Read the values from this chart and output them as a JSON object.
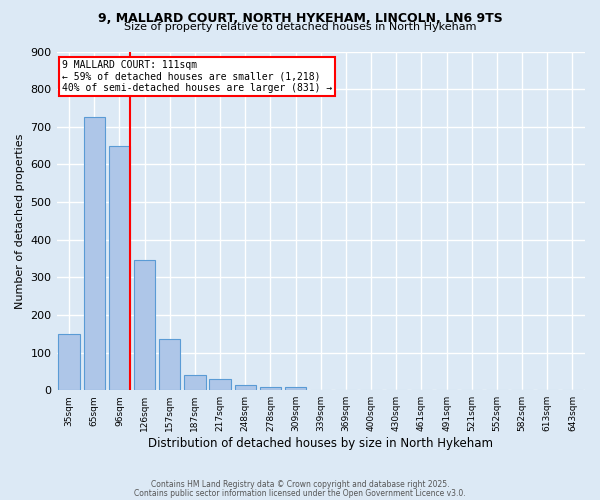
{
  "title1": "9, MALLARD COURT, NORTH HYKEHAM, LINCOLN, LN6 9TS",
  "title2": "Size of property relative to detached houses in North Hykeham",
  "xlabel": "Distribution of detached houses by size in North Hykeham",
  "ylabel": "Number of detached properties",
  "categories": [
    "35sqm",
    "65sqm",
    "96sqm",
    "126sqm",
    "157sqm",
    "187sqm",
    "217sqm",
    "248sqm",
    "278sqm",
    "309sqm",
    "339sqm",
    "369sqm",
    "400sqm",
    "430sqm",
    "461sqm",
    "491sqm",
    "521sqm",
    "552sqm",
    "582sqm",
    "613sqm",
    "643sqm"
  ],
  "values": [
    150,
    725,
    650,
    345,
    135,
    40,
    30,
    15,
    8,
    8,
    0,
    0,
    0,
    0,
    0,
    0,
    0,
    0,
    0,
    0,
    0
  ],
  "bar_color": "#aec6e8",
  "bar_edge_color": "#5a9bd5",
  "background_color": "#dce9f5",
  "grid_color": "#ffffff",
  "vline_color": "red",
  "vline_pos": 2.4,
  "annotation_text": "9 MALLARD COURT: 111sqm\n← 59% of detached houses are smaller (1,218)\n40% of semi-detached houses are larger (831) →",
  "annotation_box_color": "white",
  "annotation_box_edge": "red",
  "ylim": [
    0,
    900
  ],
  "yticks": [
    0,
    100,
    200,
    300,
    400,
    500,
    600,
    700,
    800,
    900
  ],
  "footer1": "Contains HM Land Registry data © Crown copyright and database right 2025.",
  "footer2": "Contains public sector information licensed under the Open Government Licence v3.0."
}
